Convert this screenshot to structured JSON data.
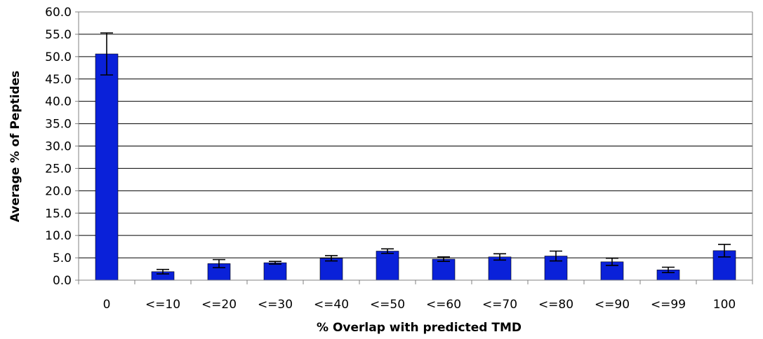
{
  "chart_data": {
    "type": "bar",
    "title": "",
    "xlabel": "% Overlap with predicted TMD",
    "ylabel": "Average % of Peptides",
    "categories": [
      "0",
      "<=10",
      "<=20",
      "<=30",
      "<=40",
      "<=50",
      "<=60",
      "<=70",
      "<=80",
      "<=90",
      "<=99",
      "100"
    ],
    "series": [
      {
        "values": [
          50.6,
          1.9,
          3.7,
          3.9,
          4.9,
          6.5,
          4.7,
          5.2,
          5.4,
          4.1,
          2.3,
          6.6
        ],
        "errors": [
          4.7,
          0.5,
          0.9,
          0.3,
          0.6,
          0.5,
          0.5,
          0.7,
          1.1,
          0.8,
          0.6,
          1.4
        ]
      }
    ],
    "ylim": [
      0,
      60
    ],
    "yticks": [
      0,
      5,
      10,
      15,
      20,
      25,
      30,
      35,
      40,
      45,
      50,
      55,
      60
    ],
    "ytick_format": "0.0",
    "grid": true,
    "legend": "none",
    "colors": {
      "bar": "#0a21d9",
      "bar_edge": "#000000",
      "grid": "#000000",
      "axis": "#808080",
      "error_bar": "#000000"
    }
  }
}
